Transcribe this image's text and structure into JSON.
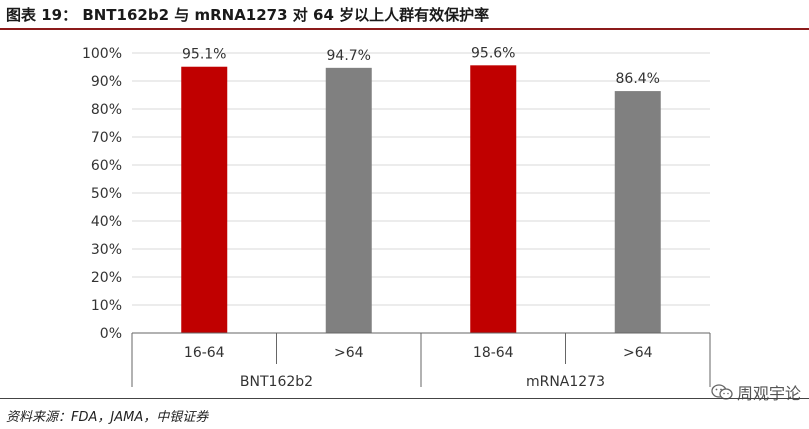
{
  "title": "图表 19：  BNT162b2 与 mRNA1273 对 64 岁以上人群有效保护率",
  "source": "资料来源：FDA，JAMA，中银证券",
  "watermark": "周观宇论",
  "colors": {
    "red": "#c00000",
    "gray": "#808080"
  },
  "chart_data": {
    "type": "bar",
    "groups": [
      "BNT162b2",
      "mRNA1273"
    ],
    "categories": [
      "16-64",
      ">64",
      "18-64",
      ">64"
    ],
    "category_groups": [
      0,
      0,
      1,
      1
    ],
    "values": [
      95.1,
      94.7,
      95.6,
      86.4
    ],
    "value_labels": [
      "95.1%",
      "94.7%",
      "95.6%",
      "86.4%"
    ],
    "bar_colors": [
      "red",
      "gray",
      "red",
      "gray"
    ],
    "ylim": [
      0,
      100
    ],
    "yticks": [
      0,
      10,
      20,
      30,
      40,
      50,
      60,
      70,
      80,
      90,
      100
    ],
    "ytick_labels": [
      "0%",
      "10%",
      "20%",
      "30%",
      "40%",
      "50%",
      "60%",
      "70%",
      "80%",
      "90%",
      "100%"
    ],
    "grid": true,
    "xlabel": "",
    "ylabel": ""
  }
}
